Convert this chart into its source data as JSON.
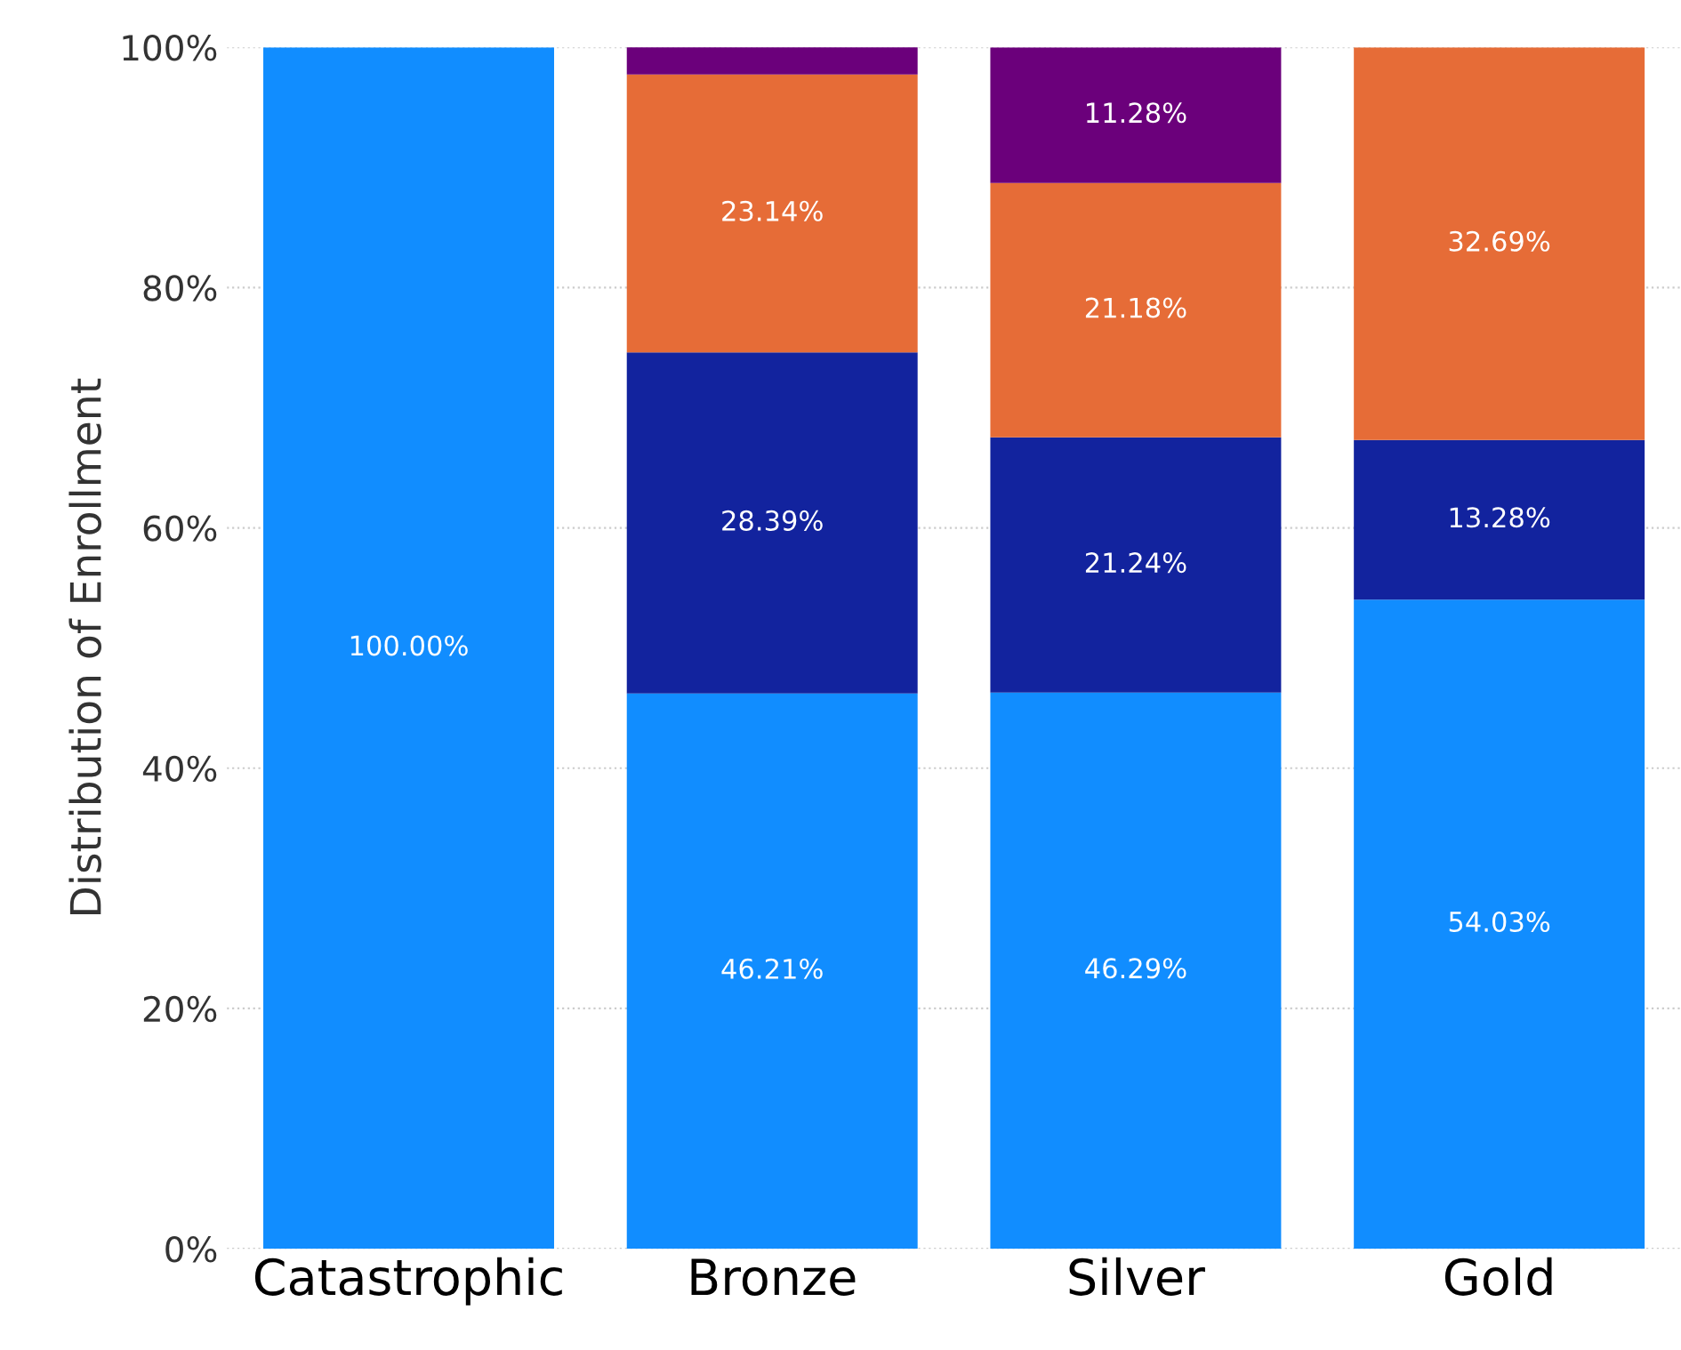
{
  "chart_data": {
    "type": "bar",
    "stacked": true,
    "ylabel": "Distribution of Enrollment",
    "categories": [
      "Catastrophic",
      "Bronze",
      "Silver",
      "Gold"
    ],
    "series": [
      {
        "color": "#118dff",
        "values": [
          100,
          46.21,
          46.29,
          54.03
        ],
        "value_labels": [
          "100.00%",
          "46.21%",
          "46.29%",
          "54.03%"
        ]
      },
      {
        "color": "#12239e",
        "values": [
          null,
          28.39,
          21.24,
          13.28
        ],
        "value_labels": [
          null,
          "28.39%",
          "21.24%",
          "13.28%"
        ]
      },
      {
        "color": "#e66c37",
        "values": [
          null,
          23.14,
          21.18,
          32.69
        ],
        "value_labels": [
          null,
          "23.14%",
          "21.18%",
          "32.69%"
        ]
      },
      {
        "color": "#6b007b",
        "values": [
          null,
          2.3,
          11.28,
          null
        ],
        "value_labels": [
          null,
          null,
          "11.28%",
          null
        ]
      }
    ],
    "ylim": [
      0,
      100
    ],
    "yticks": [
      {
        "value": 0,
        "label": "0%"
      },
      {
        "value": 20,
        "label": "20%"
      },
      {
        "value": 40,
        "label": "40%"
      },
      {
        "value": 60,
        "label": "60%"
      },
      {
        "value": 80,
        "label": "80%"
      },
      {
        "value": 100,
        "label": "100%"
      }
    ],
    "grid": "y"
  }
}
